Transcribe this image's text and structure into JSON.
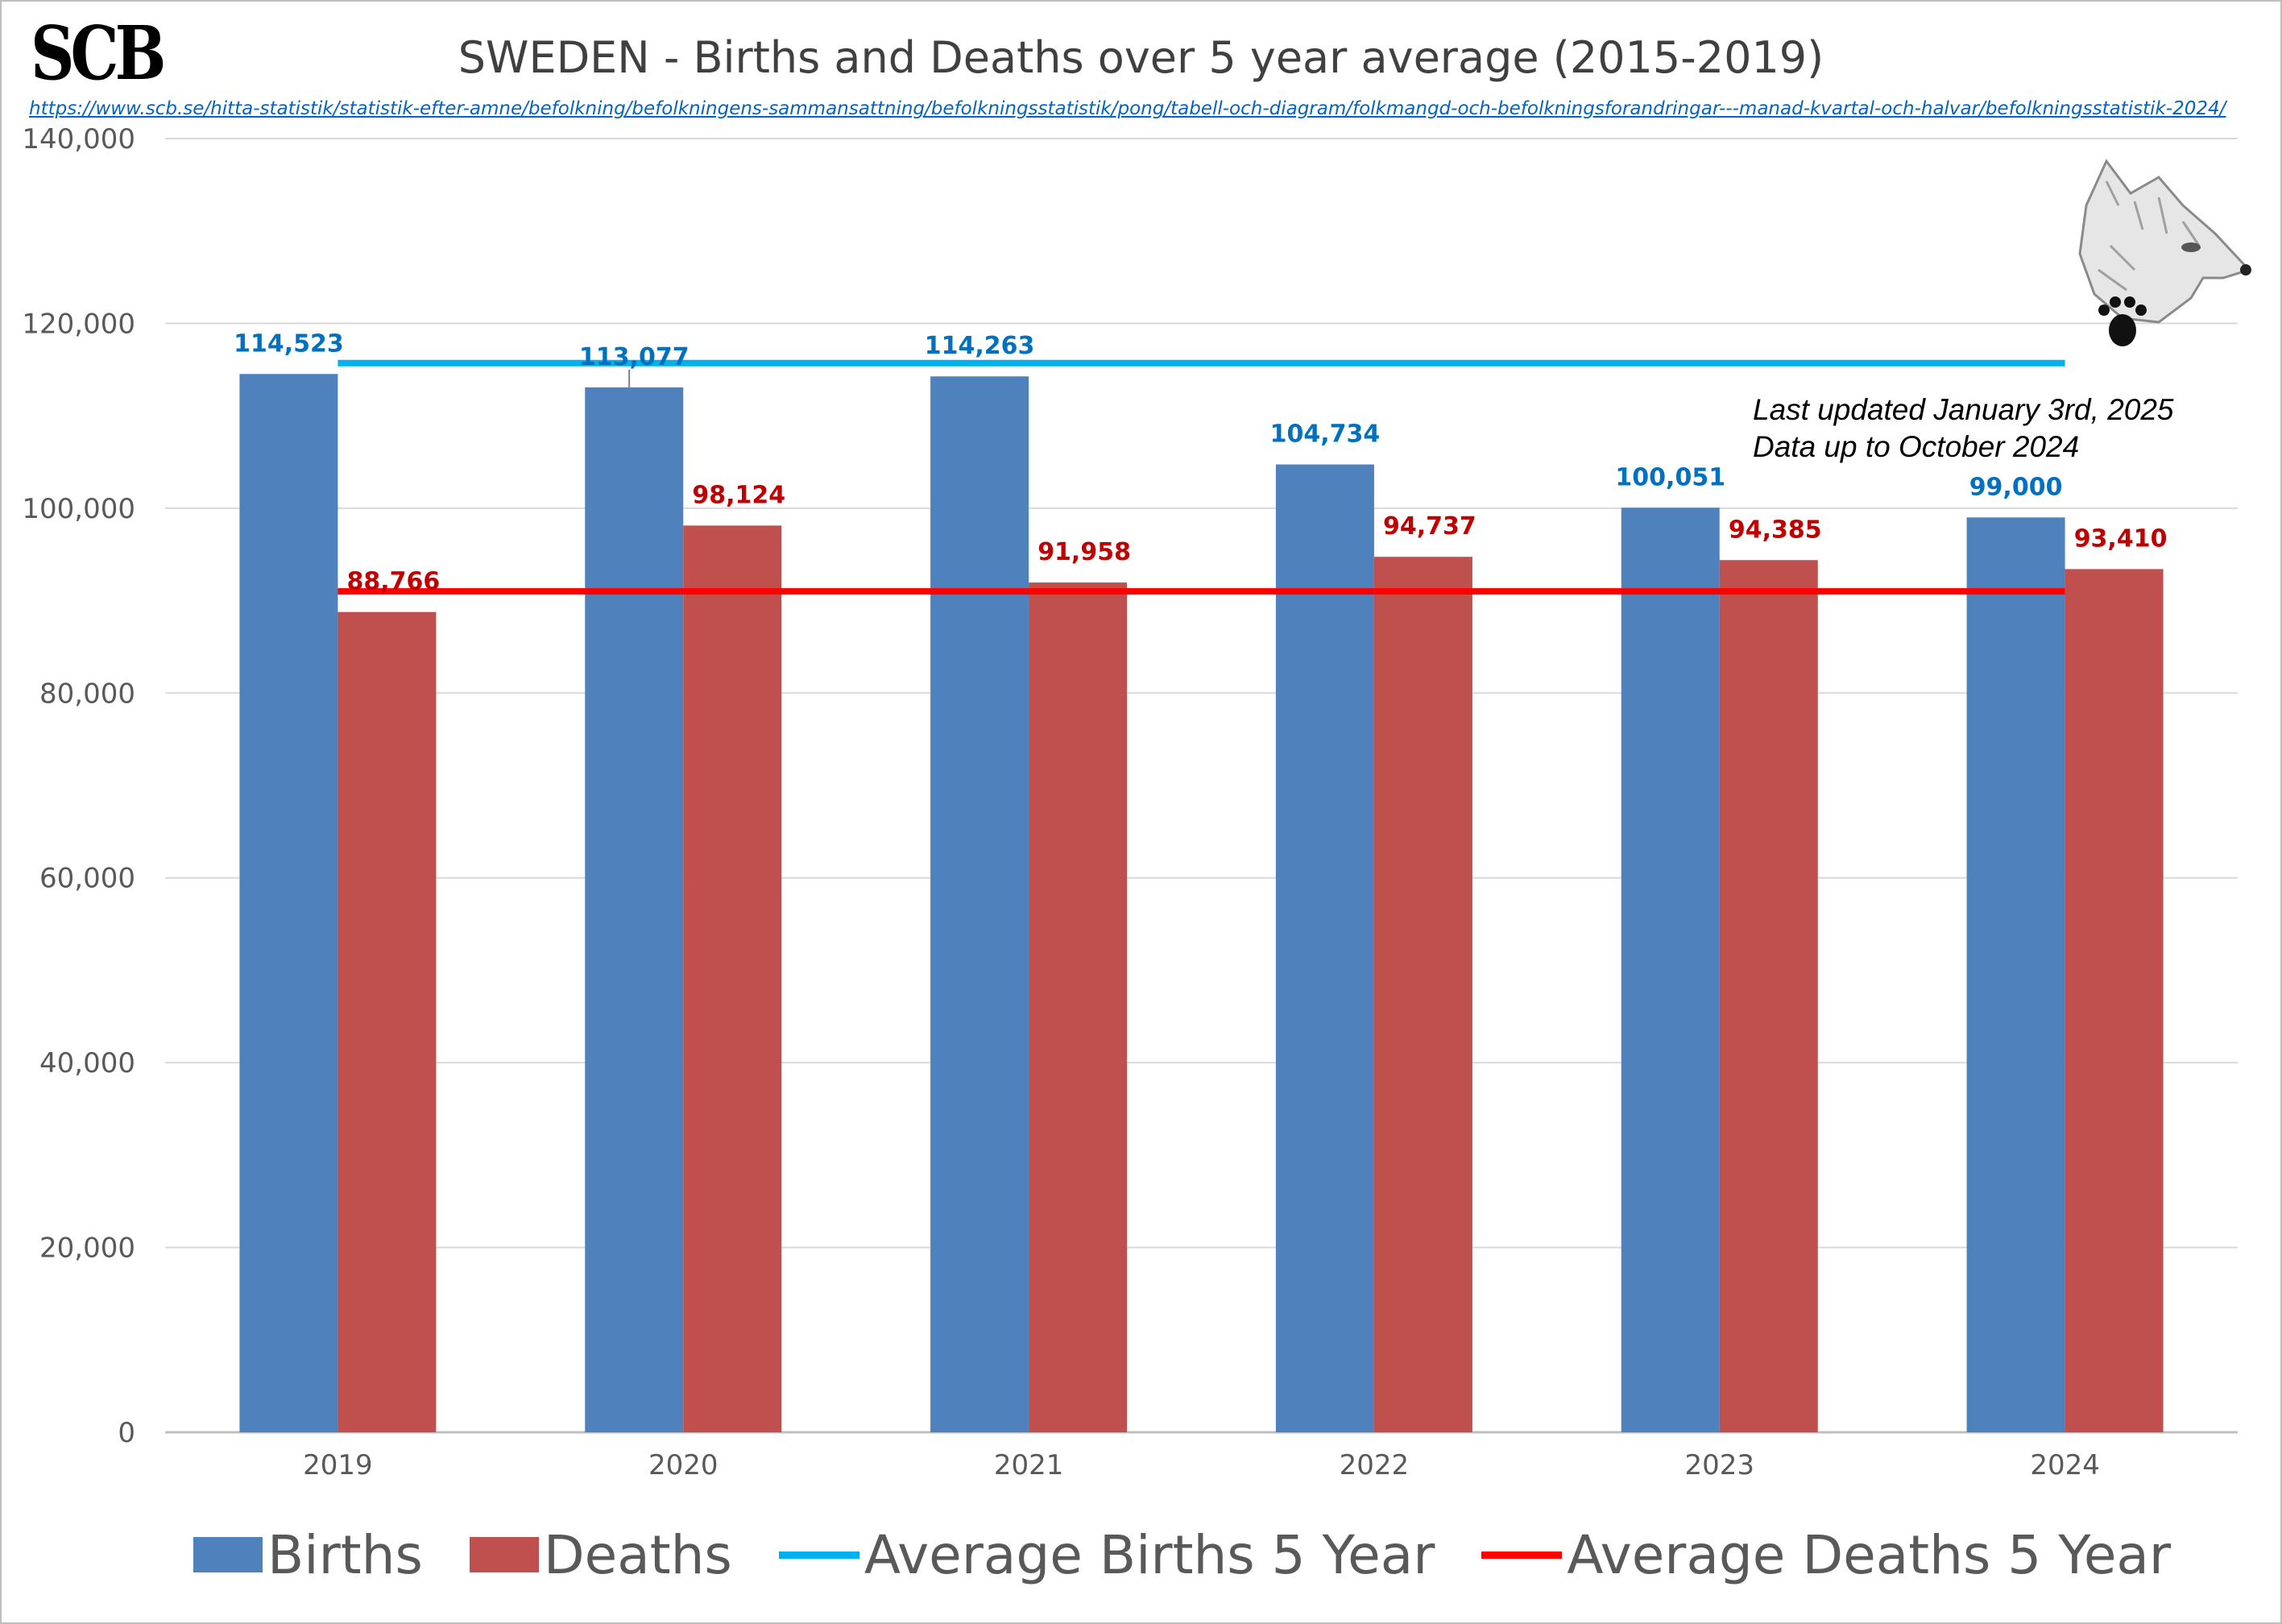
{
  "logo_text": "SCB",
  "title": "SWEDEN - Births and Deaths over 5 year average (2015-2019)",
  "source_url": "https://www.scb.se/hitta-statistik/statistik-efter-amne/befolkning/befolkningens-sammansattning/befolkningsstatistik/pong/tabell-och-diagram/folkmangd-och-befolkningsforandringar---manad-kvartal-och-halvar/befolkningsstatistik-2024/",
  "update_note": {
    "line1": "Last updated January 3rd, 2025",
    "line2": "Data up to October 2024"
  },
  "colors": {
    "births": "#4f81bd",
    "deaths": "#c0504d",
    "avg_births": "#00b0f0",
    "avg_deaths": "#ff0000",
    "births_label": "#0070c0",
    "deaths_label": "#c00000"
  },
  "chart_data": {
    "type": "bar",
    "categories": [
      "2019",
      "2020",
      "2021",
      "2022",
      "2023",
      "2024"
    ],
    "series": [
      {
        "name": "Births",
        "type": "bar",
        "values": [
          114523,
          113077,
          114263,
          104734,
          100051,
          99000
        ],
        "labels": [
          "114,523",
          "113,077",
          "114,263",
          "104,734",
          "100,051",
          "99,000"
        ]
      },
      {
        "name": "Deaths",
        "type": "bar",
        "values": [
          88766,
          98124,
          91958,
          94737,
          94385,
          93410
        ],
        "labels": [
          "88,766",
          "98,124",
          "91,958",
          "94,737",
          "94,385",
          "93,410"
        ]
      },
      {
        "name": "Average Births 5 Year",
        "type": "line",
        "values": [
          115700,
          115700,
          115700,
          115700,
          115700,
          115700
        ]
      },
      {
        "name": "Average Deaths 5 Year",
        "type": "line",
        "values": [
          91000,
          91000,
          91000,
          91000,
          91000,
          91000
        ]
      }
    ],
    "ylim": [
      0,
      140000
    ],
    "yticks": [
      0,
      20000,
      40000,
      60000,
      80000,
      100000,
      120000,
      140000
    ],
    "ytick_labels": [
      "0",
      "20,000",
      "40,000",
      "60,000",
      "80,000",
      "100,000",
      "120,000",
      "140,000"
    ],
    "grid": true,
    "legend": "bottom"
  }
}
